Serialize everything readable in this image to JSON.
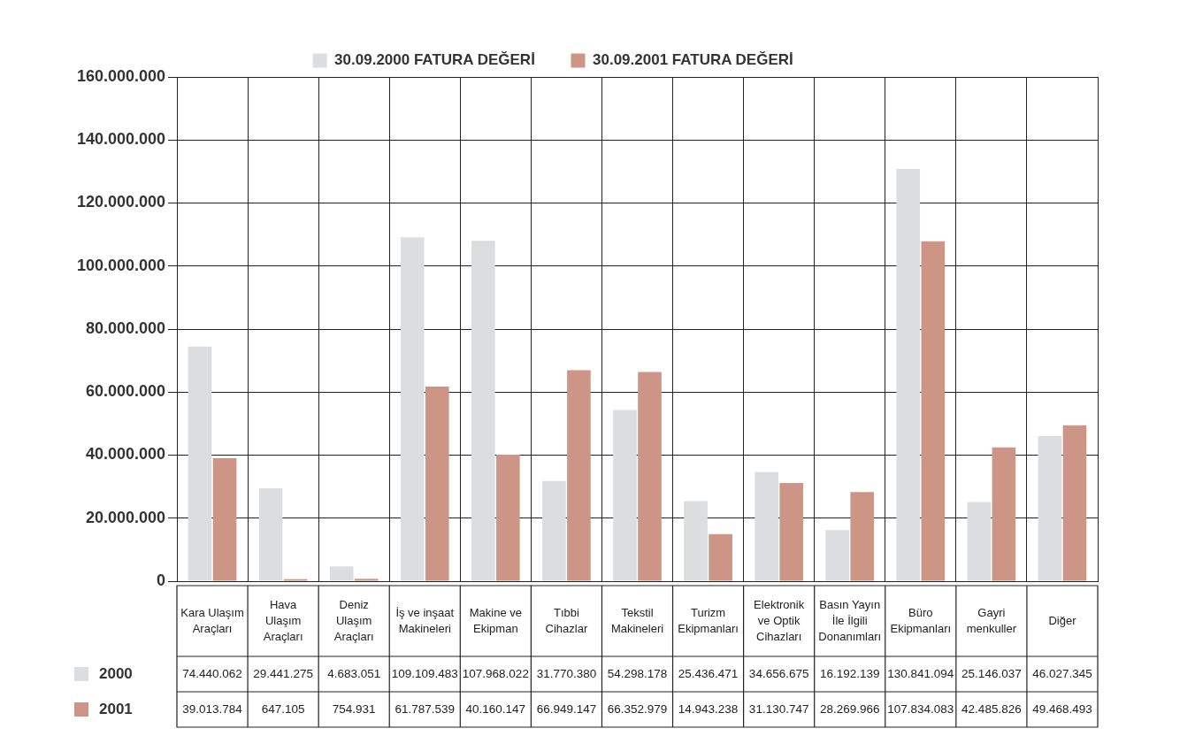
{
  "chart_data": {
    "type": "bar",
    "categories": [
      "Kara Ulaşım Araçları",
      "Hava Ulaşım Araçları",
      "Deniz Ulaşım Araçları",
      "İş ve inşaat Makineleri",
      "Makine ve Ekipman",
      "Tıbbi Cihazlar",
      "Tekstil Makineleri",
      "Turizm Ekipmanları",
      "Elektronik ve Optik Cihazları",
      "Basın Yayın İle İlgili Donanımları",
      "Büro Ekipmanları",
      "Gayri menkuller",
      "Diğer"
    ],
    "series": [
      {
        "name": "30.09.2000 FATURA DEĞERİ",
        "color": "#dcdddf",
        "values": [
          74440062,
          29441275,
          4683051,
          109109483,
          107968022,
          31770380,
          54298178,
          25436471,
          34656675,
          16192139,
          130841094,
          25146037,
          46027345
        ],
        "value_labels": [
          "74.440.062",
          "29.441.275",
          "4.683.051",
          "109.109.483",
          "107.968.022",
          "31.770.380",
          "54.298.178",
          "25.436.471",
          "34.656.675",
          "16.192.139",
          "130.841.094",
          "25.146.037",
          "46.027.345"
        ]
      },
      {
        "name": "30.09.2001 FATURA DEĞERİ",
        "color": "#cd9585",
        "values": [
          39013784,
          647105,
          754931,
          61787539,
          40160147,
          66949147,
          66352979,
          14943238,
          31130747,
          28269966,
          107834083,
          42485826,
          49468493
        ],
        "value_labels": [
          "39.013.784",
          "647.105",
          "754.931",
          "61.787.539",
          "40.160.147",
          "66.949.147",
          "66.352.979",
          "14.943.238",
          "31.130.747",
          "28.269.966",
          "107.834.083",
          "42.485.826",
          "49.468.493"
        ]
      }
    ],
    "annotations": [
      "2000",
      "2001"
    ],
    "ylim": [
      0,
      160000000
    ],
    "yticks": [
      0,
      {
        "value": 20000000,
        "label": "20.000.000"
      },
      {
        "value": 40000000,
        "label": "40.000.000"
      },
      {
        "value": 60000000,
        "label": "60.000.000"
      },
      {
        "value": 80000000,
        "label": "80.000.000"
      },
      {
        "value": 100000000,
        "label": "100.000.000"
      },
      {
        "value": 120000000,
        "label": "120.000.000"
      },
      {
        "value": 140000000,
        "label": "140.000.000"
      },
      {
        "value": 160000000,
        "label": "160.000.000"
      }
    ],
    "grid": true,
    "legend": "top",
    "tick_labels": "y"
  }
}
